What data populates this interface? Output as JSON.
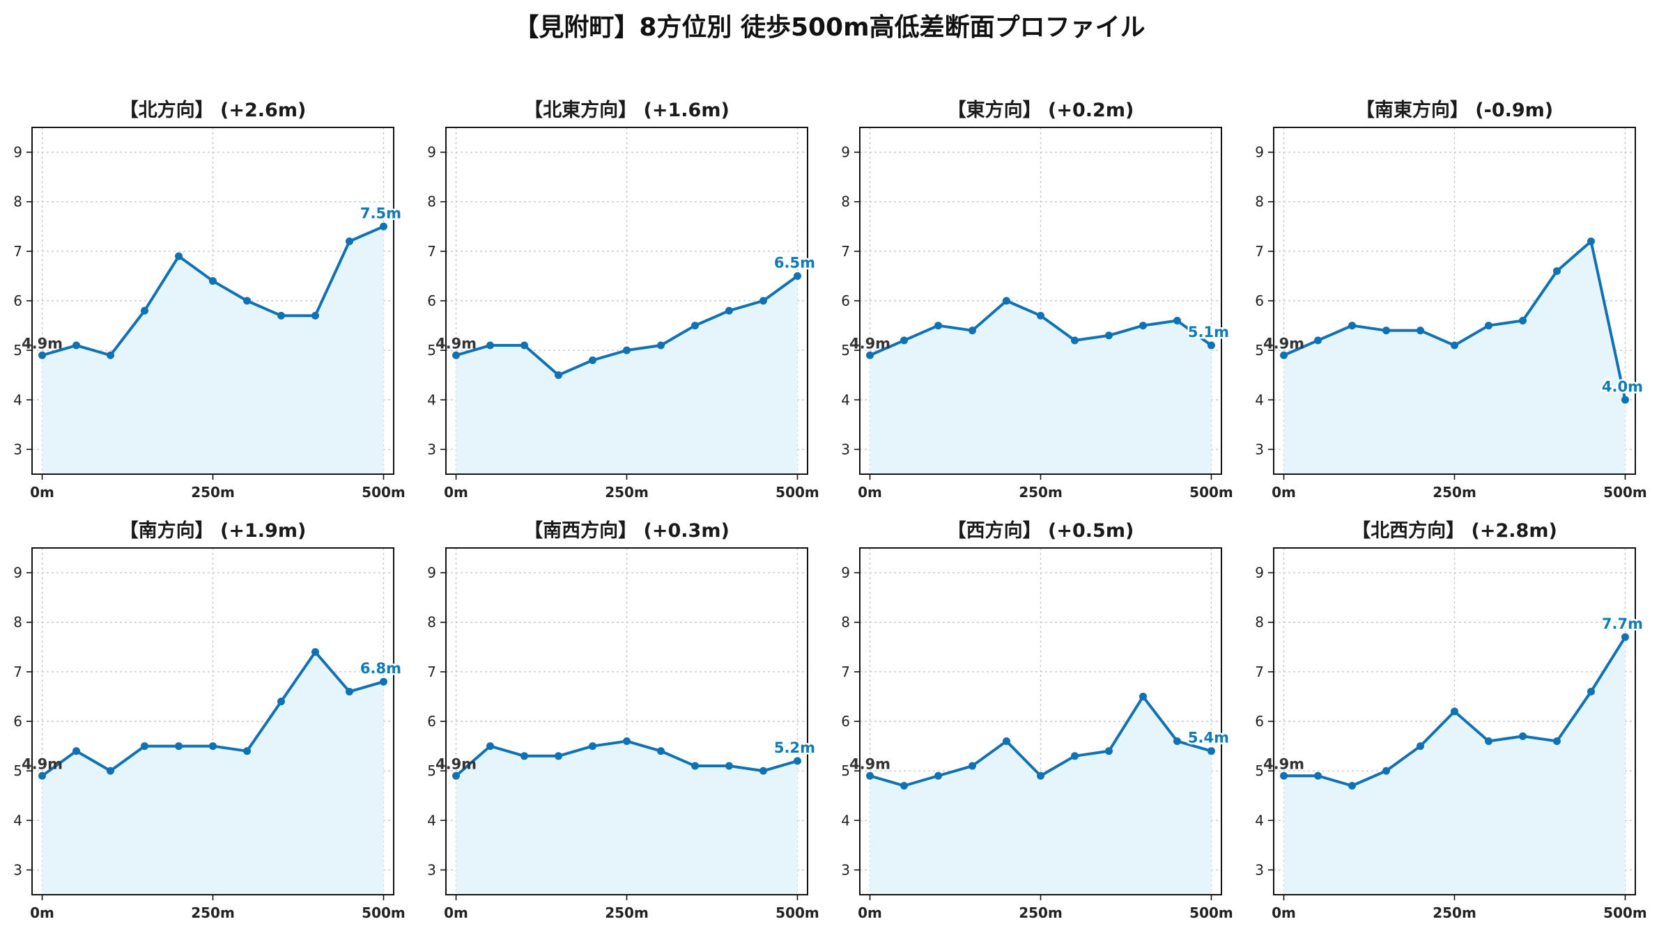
{
  "title": "【見附町】8方位別 徒歩500m高低差断面プロファイル",
  "colors": {
    "line": "#0e72b5",
    "fill": "#e6f5fc",
    "end_label": "#0e7ab8",
    "start_label": "#333333",
    "grid": "#c8c8c8"
  },
  "chart_data": [
    {
      "type": "area",
      "title": "【北方向】 (+2.6m)",
      "x": [
        0,
        50,
        100,
        150,
        200,
        250,
        300,
        350,
        400,
        450,
        500
      ],
      "values": [
        4.9,
        5.1,
        4.9,
        5.8,
        6.9,
        6.4,
        6.0,
        5.7,
        5.7,
        7.2,
        7.5
      ],
      "ylim": [
        2.5,
        9.5
      ],
      "yticks": [
        3,
        4,
        5,
        6,
        7,
        8,
        9
      ],
      "xticks": [
        0,
        250,
        500
      ],
      "xtick_labels": [
        "0m",
        "250m",
        "500m"
      ],
      "start_label": "4.9m",
      "end_label": "7.5m",
      "grid": true
    },
    {
      "type": "area",
      "title": "【北東方向】 (+1.6m)",
      "x": [
        0,
        50,
        100,
        150,
        200,
        250,
        300,
        350,
        400,
        450,
        500
      ],
      "values": [
        4.9,
        5.1,
        5.1,
        4.5,
        4.8,
        5.0,
        5.1,
        5.5,
        5.8,
        6.0,
        6.5
      ],
      "ylim": [
        2.5,
        9.5
      ],
      "yticks": [
        3,
        4,
        5,
        6,
        7,
        8,
        9
      ],
      "xticks": [
        0,
        250,
        500
      ],
      "xtick_labels": [
        "0m",
        "250m",
        "500m"
      ],
      "start_label": "4.9m",
      "end_label": "6.5m",
      "grid": true
    },
    {
      "type": "area",
      "title": "【東方向】 (+0.2m)",
      "x": [
        0,
        50,
        100,
        150,
        200,
        250,
        300,
        350,
        400,
        450,
        500
      ],
      "values": [
        4.9,
        5.2,
        5.5,
        5.4,
        6.0,
        5.7,
        5.2,
        5.3,
        5.5,
        5.6,
        5.1
      ],
      "ylim": [
        2.5,
        9.5
      ],
      "yticks": [
        3,
        4,
        5,
        6,
        7,
        8,
        9
      ],
      "xticks": [
        0,
        250,
        500
      ],
      "xtick_labels": [
        "0m",
        "250m",
        "500m"
      ],
      "start_label": "4.9m",
      "end_label": "5.1m",
      "grid": true
    },
    {
      "type": "area",
      "title": "【南東方向】 (-0.9m)",
      "x": [
        0,
        50,
        100,
        150,
        200,
        250,
        300,
        350,
        400,
        450,
        500
      ],
      "values": [
        4.9,
        5.2,
        5.5,
        5.4,
        5.4,
        5.1,
        5.5,
        5.6,
        6.6,
        7.2,
        4.0
      ],
      "ylim": [
        2.5,
        9.5
      ],
      "yticks": [
        3,
        4,
        5,
        6,
        7,
        8,
        9
      ],
      "xticks": [
        0,
        250,
        500
      ],
      "xtick_labels": [
        "0m",
        "250m",
        "500m"
      ],
      "start_label": "4.9m",
      "end_label": "4.0m",
      "grid": true
    },
    {
      "type": "area",
      "title": "【南方向】 (+1.9m)",
      "x": [
        0,
        50,
        100,
        150,
        200,
        250,
        300,
        350,
        400,
        450,
        500
      ],
      "values": [
        4.9,
        5.4,
        5.0,
        5.5,
        5.5,
        5.5,
        5.4,
        6.4,
        7.4,
        6.6,
        6.8
      ],
      "ylim": [
        2.5,
        9.5
      ],
      "yticks": [
        3,
        4,
        5,
        6,
        7,
        8,
        9
      ],
      "xticks": [
        0,
        250,
        500
      ],
      "xtick_labels": [
        "0m",
        "250m",
        "500m"
      ],
      "start_label": "4.9m",
      "end_label": "6.8m",
      "grid": true
    },
    {
      "type": "area",
      "title": "【南西方向】 (+0.3m)",
      "x": [
        0,
        50,
        100,
        150,
        200,
        250,
        300,
        350,
        400,
        450,
        500
      ],
      "values": [
        4.9,
        5.5,
        5.3,
        5.3,
        5.5,
        5.6,
        5.4,
        5.1,
        5.1,
        5.0,
        5.2
      ],
      "ylim": [
        2.5,
        9.5
      ],
      "yticks": [
        3,
        4,
        5,
        6,
        7,
        8,
        9
      ],
      "xticks": [
        0,
        250,
        500
      ],
      "xtick_labels": [
        "0m",
        "250m",
        "500m"
      ],
      "start_label": "4.9m",
      "end_label": "5.2m",
      "grid": true
    },
    {
      "type": "area",
      "title": "【西方向】 (+0.5m)",
      "x": [
        0,
        50,
        100,
        150,
        200,
        250,
        300,
        350,
        400,
        450,
        500
      ],
      "values": [
        4.9,
        4.7,
        4.9,
        5.1,
        5.6,
        4.9,
        5.3,
        5.4,
        6.5,
        5.6,
        5.4
      ],
      "ylim": [
        2.5,
        9.5
      ],
      "yticks": [
        3,
        4,
        5,
        6,
        7,
        8,
        9
      ],
      "xticks": [
        0,
        250,
        500
      ],
      "xtick_labels": [
        "0m",
        "250m",
        "500m"
      ],
      "start_label": "4.9m",
      "end_label": "5.4m",
      "grid": true
    },
    {
      "type": "area",
      "title": "【北西方向】 (+2.8m)",
      "x": [
        0,
        50,
        100,
        150,
        200,
        250,
        300,
        350,
        400,
        450,
        500
      ],
      "values": [
        4.9,
        4.9,
        4.7,
        5.0,
        5.5,
        6.2,
        5.6,
        5.7,
        5.6,
        6.6,
        7.7
      ],
      "ylim": [
        2.5,
        9.5
      ],
      "yticks": [
        3,
        4,
        5,
        6,
        7,
        8,
        9
      ],
      "xticks": [
        0,
        250,
        500
      ],
      "xtick_labels": [
        "0m",
        "250m",
        "500m"
      ],
      "start_label": "4.9m",
      "end_label": "7.7m",
      "grid": true
    }
  ]
}
